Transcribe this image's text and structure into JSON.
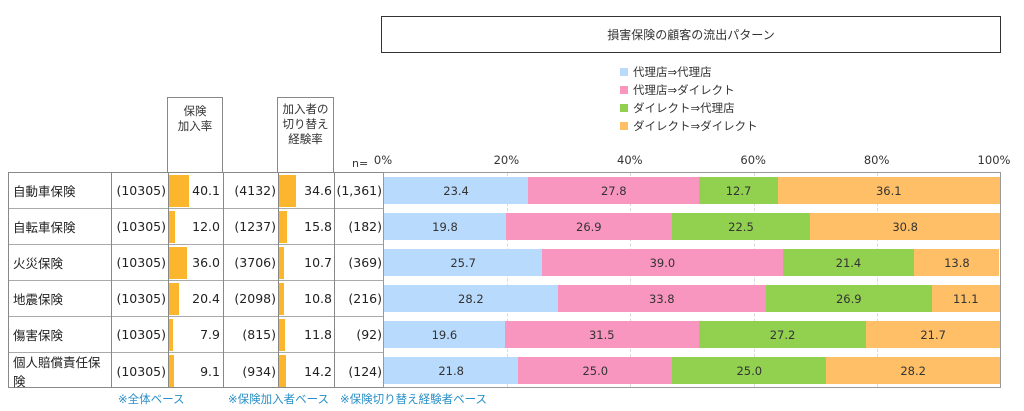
{
  "chart_data": {
    "type": "bar",
    "orientation": "horizontal",
    "stacked": true,
    "title": "損害保険の顧客の流出パターン",
    "xlabel": "",
    "ylabel": "",
    "xlim": [
      0,
      100
    ],
    "x_ticks": [
      "0%",
      "20%",
      "40%",
      "60%",
      "80%",
      "100%"
    ],
    "grid": true,
    "legend_position": "top-right",
    "categories": [
      "自動車保険",
      "自転車保険",
      "火災保険",
      "地震保険",
      "傷害保険",
      "個人賠償責任保険"
    ],
    "series": [
      {
        "name": "代理店⇒代理店",
        "color": "#b8dafc",
        "values": [
          23.4,
          19.8,
          25.7,
          28.2,
          19.6,
          21.8
        ]
      },
      {
        "name": "代理店⇒ダイレクト",
        "color": "#f996c0",
        "values": [
          27.8,
          26.9,
          39.0,
          33.8,
          31.5,
          25.0
        ]
      },
      {
        "name": "ダイレクト⇒代理店",
        "color": "#92d050",
        "values": [
          12.7,
          22.5,
          21.4,
          26.9,
          27.2,
          25.0
        ]
      },
      {
        "name": "ダイレクト⇒ダイレクト",
        "color": "#ffbf66",
        "values": [
          36.1,
          30.8,
          13.8,
          11.1,
          21.7,
          28.2
        ]
      }
    ]
  },
  "table": {
    "header_col1": "保険\n加入率",
    "header_col2": "加入者の\n切り替え\n経験率",
    "n_label": "n=",
    "bar_color": "#fbb62e",
    "rows": [
      {
        "name": "自動車保険",
        "n_all": "(10305)",
        "join_rate": "40.1",
        "join_rate_value": 40.1,
        "n_joined": "(4132)",
        "switch_rate": "34.6",
        "switch_rate_value": 34.6,
        "n_switch": "(1,361)"
      },
      {
        "name": "自転車保険",
        "n_all": "(10305)",
        "join_rate": "12.0",
        "join_rate_value": 12.0,
        "n_joined": "(1237)",
        "switch_rate": "15.8",
        "switch_rate_value": 15.8,
        "n_switch": "(182)"
      },
      {
        "name": "火災保険",
        "n_all": "(10305)",
        "join_rate": "36.0",
        "join_rate_value": 36.0,
        "n_joined": "(3706)",
        "switch_rate": "10.7",
        "switch_rate_value": 10.7,
        "n_switch": "(369)"
      },
      {
        "name": "地震保険",
        "n_all": "(10305)",
        "join_rate": "20.4",
        "join_rate_value": 20.4,
        "n_joined": "(2098)",
        "switch_rate": "10.8",
        "switch_rate_value": 10.8,
        "n_switch": "(216)"
      },
      {
        "name": "傷害保険",
        "n_all": "(10305)",
        "join_rate": "7.9",
        "join_rate_value": 7.9,
        "n_joined": "(815)",
        "switch_rate": "11.8",
        "switch_rate_value": 11.8,
        "n_switch": "(92)"
      },
      {
        "name": "個人賠償責任保険",
        "n_all": "(10305)",
        "join_rate": "9.1",
        "join_rate_value": 9.1,
        "n_joined": "(934)",
        "switch_rate": "14.2",
        "switch_rate_value": 14.2,
        "n_switch": "(124)"
      }
    ]
  },
  "notes": [
    "※全体ベース",
    "※保険加入者ベース",
    "※保険切り替え経験者ベース"
  ]
}
